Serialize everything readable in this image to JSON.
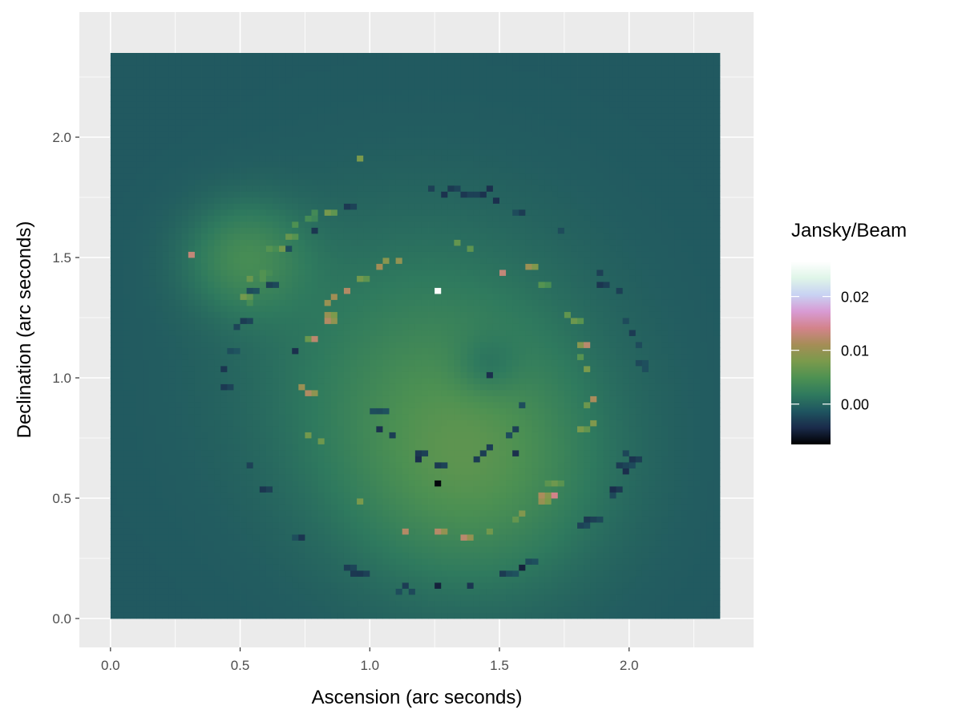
{
  "chart_data": {
    "type": "heatmap",
    "title": "",
    "xlabel": "Ascension (arc seconds)",
    "ylabel": "Declination (arc seconds)",
    "xlim": [
      -0.12,
      2.48
    ],
    "ylim": [
      -0.12,
      2.52
    ],
    "x_ticks": [
      "0.0",
      "0.5",
      "1.0",
      "1.5",
      "2.0"
    ],
    "x_tick_values": [
      0,
      0.5,
      1.0,
      1.5,
      2.0
    ],
    "y_ticks": [
      "0.0",
      "0.5",
      "1.0",
      "1.5",
      "2.0"
    ],
    "y_tick_values": [
      0,
      0.5,
      1.0,
      1.5,
      2.0
    ],
    "grid": true,
    "panel_background": "#ebebeb",
    "field": {
      "x_range": [
        0,
        2.36
      ],
      "y_range": [
        0,
        2.36
      ],
      "cell_size": 0.025,
      "background_value": -0.001,
      "components": [
        {
          "x0": 1.4,
          "y0": 0.6,
          "amplitude": 0.0048,
          "width": 0.34
        },
        {
          "x0": 1.2,
          "y0": 1.05,
          "amplitude": 0.0035,
          "width": 0.45
        },
        {
          "x0": 0.52,
          "y0": 1.5,
          "amplitude": 0.0045,
          "width": 0.16
        },
        {
          "x0": 1.45,
          "y0": 1.05,
          "amplitude": -0.0025,
          "width": 0.09
        }
      ]
    },
    "legend": {
      "title": "Jansky/Beam",
      "position": "right",
      "range": [
        -0.0075,
        0.0265
      ],
      "breaks": [
        0.0,
        0.01,
        0.02
      ],
      "break_labels": [
        "0.00",
        "0.01",
        "0.02"
      ],
      "colors": [
        "#000000",
        "#1a2a4a",
        "#1f5560",
        "#2f7a5e",
        "#4d9152",
        "#7a9a4c",
        "#a58d56",
        "#d3838b",
        "#d89bd4",
        "#c8d2f3",
        "#dff5e8",
        "#ffffff"
      ]
    },
    "features": [
      {
        "x": 1.27,
        "y": 0.55,
        "value": -0.007
      },
      {
        "x": 1.27,
        "y": 1.35,
        "value": 0.026
      },
      {
        "x": 0.97,
        "y": 1.92,
        "value": 0.008
      },
      {
        "x": 1.7,
        "y": 0.5,
        "value": 0.014
      },
      {
        "x": 1.5,
        "y": 1.45,
        "value": 0.013
      },
      {
        "x": 0.32,
        "y": 1.5,
        "value": 0.013
      },
      {
        "x": 1.59,
        "y": 0.2,
        "value": -0.005
      },
      {
        "x": 1.25,
        "y": 0.15,
        "value": -0.005
      },
      {
        "x": 1.47,
        "y": 1.78,
        "value": -0.004
      },
      {
        "x": 1.47,
        "y": 1.0,
        "value": -0.004
      },
      {
        "x": 0.72,
        "y": 1.12,
        "value": -0.004
      },
      {
        "x": 1.57,
        "y": 0.68,
        "value": -0.004
      }
    ],
    "ring_features": [
      {
        "cx": 1.25,
        "cy": 0.95,
        "rx": 0.8,
        "ry": 0.82,
        "value": -0.003,
        "start_deg": 0,
        "end_deg": 360,
        "count": 60,
        "seed": 3
      },
      {
        "cx": 1.3,
        "cy": 0.95,
        "rx": 0.55,
        "ry": 0.6,
        "value": 0.009,
        "start_deg": 0,
        "end_deg": 360,
        "count": 45,
        "seed": 7
      },
      {
        "cx": 1.3,
        "cy": 1.2,
        "rx": 0.8,
        "ry": 0.6,
        "value": 0.006,
        "start_deg": 100,
        "end_deg": 175,
        "count": 14,
        "seed": 11
      },
      {
        "cx": 1.3,
        "cy": 1.0,
        "rx": 0.3,
        "ry": 0.35,
        "value": -0.003,
        "start_deg": 200,
        "end_deg": 360,
        "count": 14,
        "seed": 13
      }
    ]
  }
}
